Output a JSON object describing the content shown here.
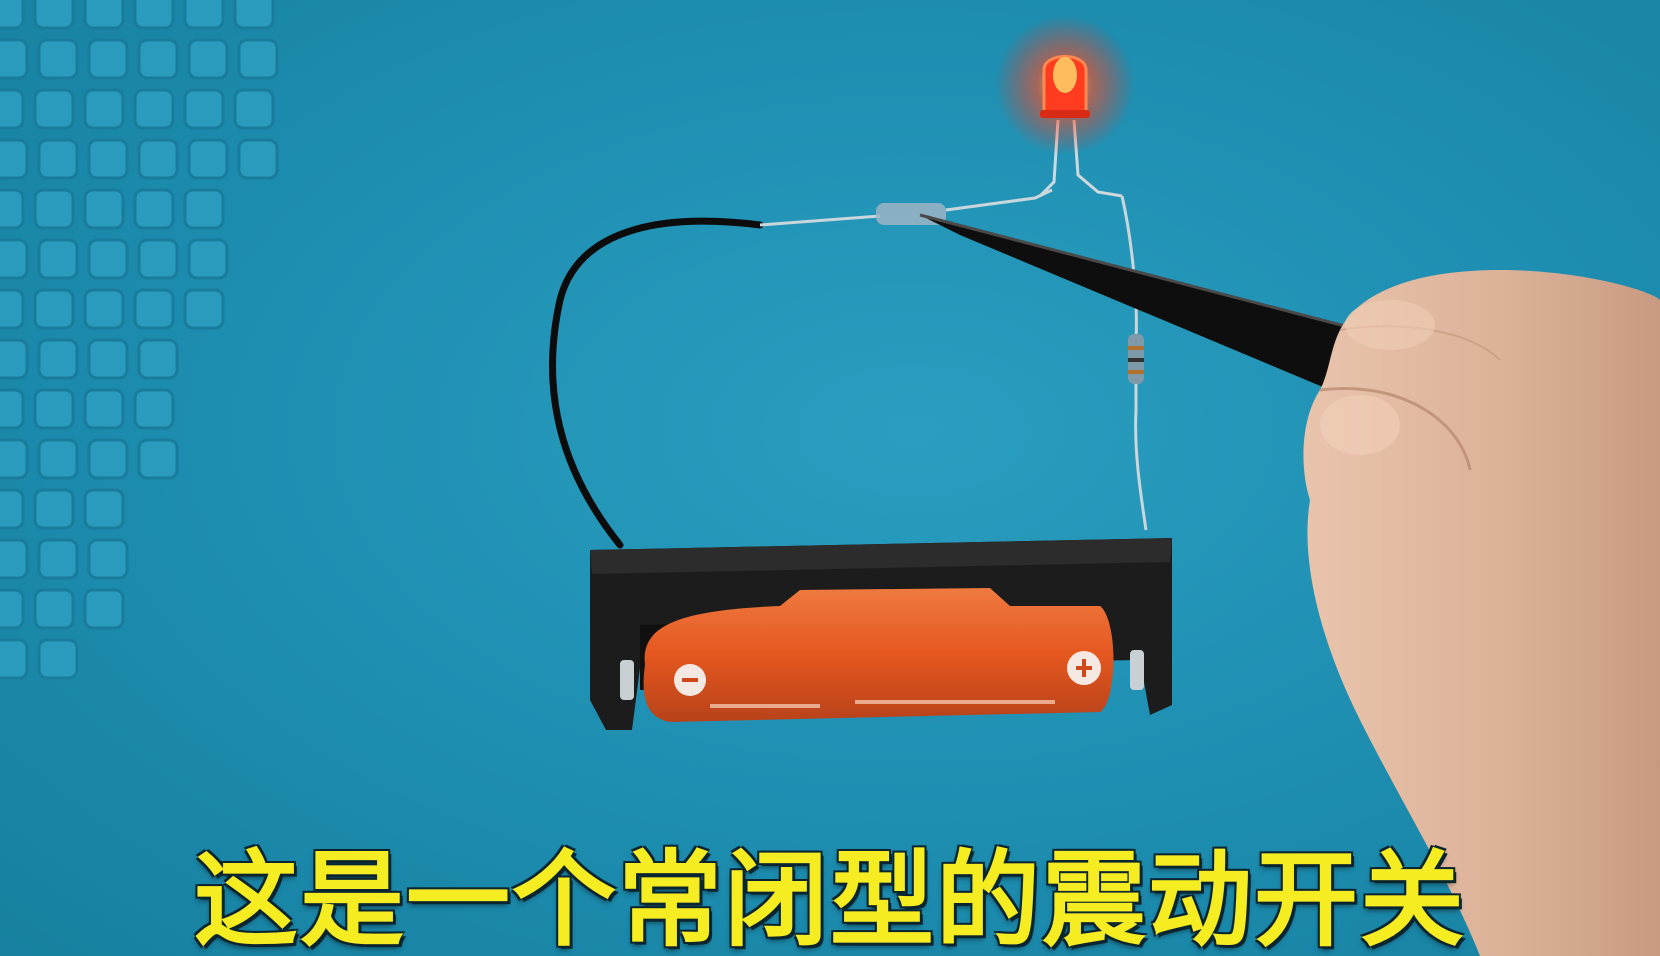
{
  "subtitle": "这是一个常闭型的震动开关",
  "colors": {
    "mat": "#1f8fb0",
    "subtitle": "#f6ec22",
    "led": "#ff3b20",
    "battery": "#e85a26",
    "holder": "#1c1c1c"
  },
  "objects": [
    "silicone-mat-grid",
    "red-led",
    "vibration-switch",
    "resistor",
    "black-wire",
    "battery-holder",
    "18650-battery",
    "tweezers",
    "hand"
  ]
}
